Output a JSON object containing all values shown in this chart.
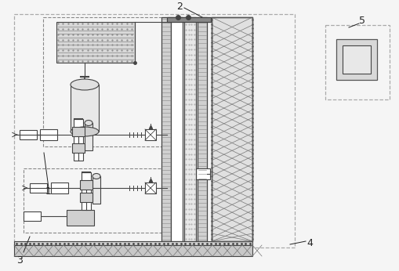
{
  "bg_color": "#f5f5f5",
  "white": "#ffffff",
  "lc": "#444444",
  "dc": "#222222",
  "gray_light": "#cccccc",
  "gray_mid": "#999999",
  "gray_dark": "#666666",
  "hatch_gray": "#888888",
  "label_fs": 9,
  "figw": 5.1,
  "figh": 3.46,
  "dpi": 100
}
